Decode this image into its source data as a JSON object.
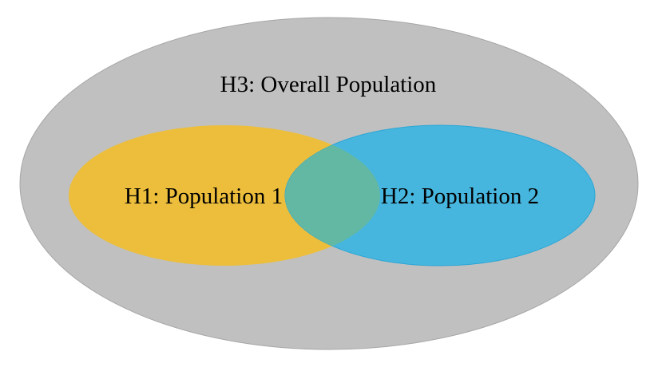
{
  "diagram": {
    "type": "venn",
    "overall": {
      "label": "H3: Overall Population",
      "fill": "#c0c0c0",
      "stroke": "#a6a6a6"
    },
    "set_a": {
      "label": "H1: Population 1",
      "fill": "#ecbe3c"
    },
    "set_b": {
      "label": "H2: Population 2",
      "fill": "#47b6de",
      "stroke": "#2aa6d6"
    },
    "overlap": {
      "fill": "#62b8a2"
    }
  }
}
